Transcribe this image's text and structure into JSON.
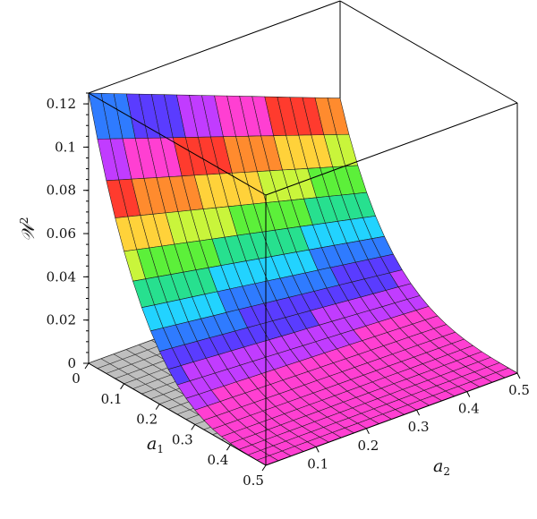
{
  "chart_data": {
    "type": "surface3d",
    "title": "",
    "z_axis": {
      "label_main": "𝒲",
      "label_sup": "2",
      "range": [
        0,
        0.125
      ],
      "ticks": [
        "0",
        "0.02",
        "0.04",
        "0.06",
        "0.08",
        "0.1",
        "0.12"
      ],
      "tick_values": [
        0,
        0.02,
        0.04,
        0.06,
        0.08,
        0.1,
        0.12
      ]
    },
    "x_axis": {
      "label_main": "a",
      "label_sub": "1",
      "range": [
        0,
        0.5
      ],
      "ticks": [
        "0",
        "0.1",
        "0.2",
        "0.3",
        "0.4",
        "0.5"
      ],
      "tick_values": [
        0,
        0.1,
        0.2,
        0.3,
        0.4,
        0.5
      ]
    },
    "y_axis": {
      "label_main": "a",
      "label_sub": "2",
      "range": [
        0,
        0.5
      ],
      "ticks": [
        "0.1",
        "0.2",
        "0.3",
        "0.4",
        "0.5"
      ],
      "tick_values": [
        0.1,
        0.2,
        0.3,
        0.4,
        0.5
      ]
    },
    "surfaces": [
      {
        "name": "",
        "description_values": {
          "value_at_a1_0_a2_0": 0.125,
          "value_at_a1_0_a2_0.5": 0.04,
          "value_at_a1_0.5_a2_0": 0.0,
          "value_at_a1_0.5_a2_0.5": 0.0
        },
        "coloring": "rainbow by height, repeating bands"
      },
      {
        "name": "",
        "description_values": {
          "constant_value": 0.0
        },
        "coloring": "gray"
      }
    ],
    "grid": false,
    "legend": "none"
  }
}
